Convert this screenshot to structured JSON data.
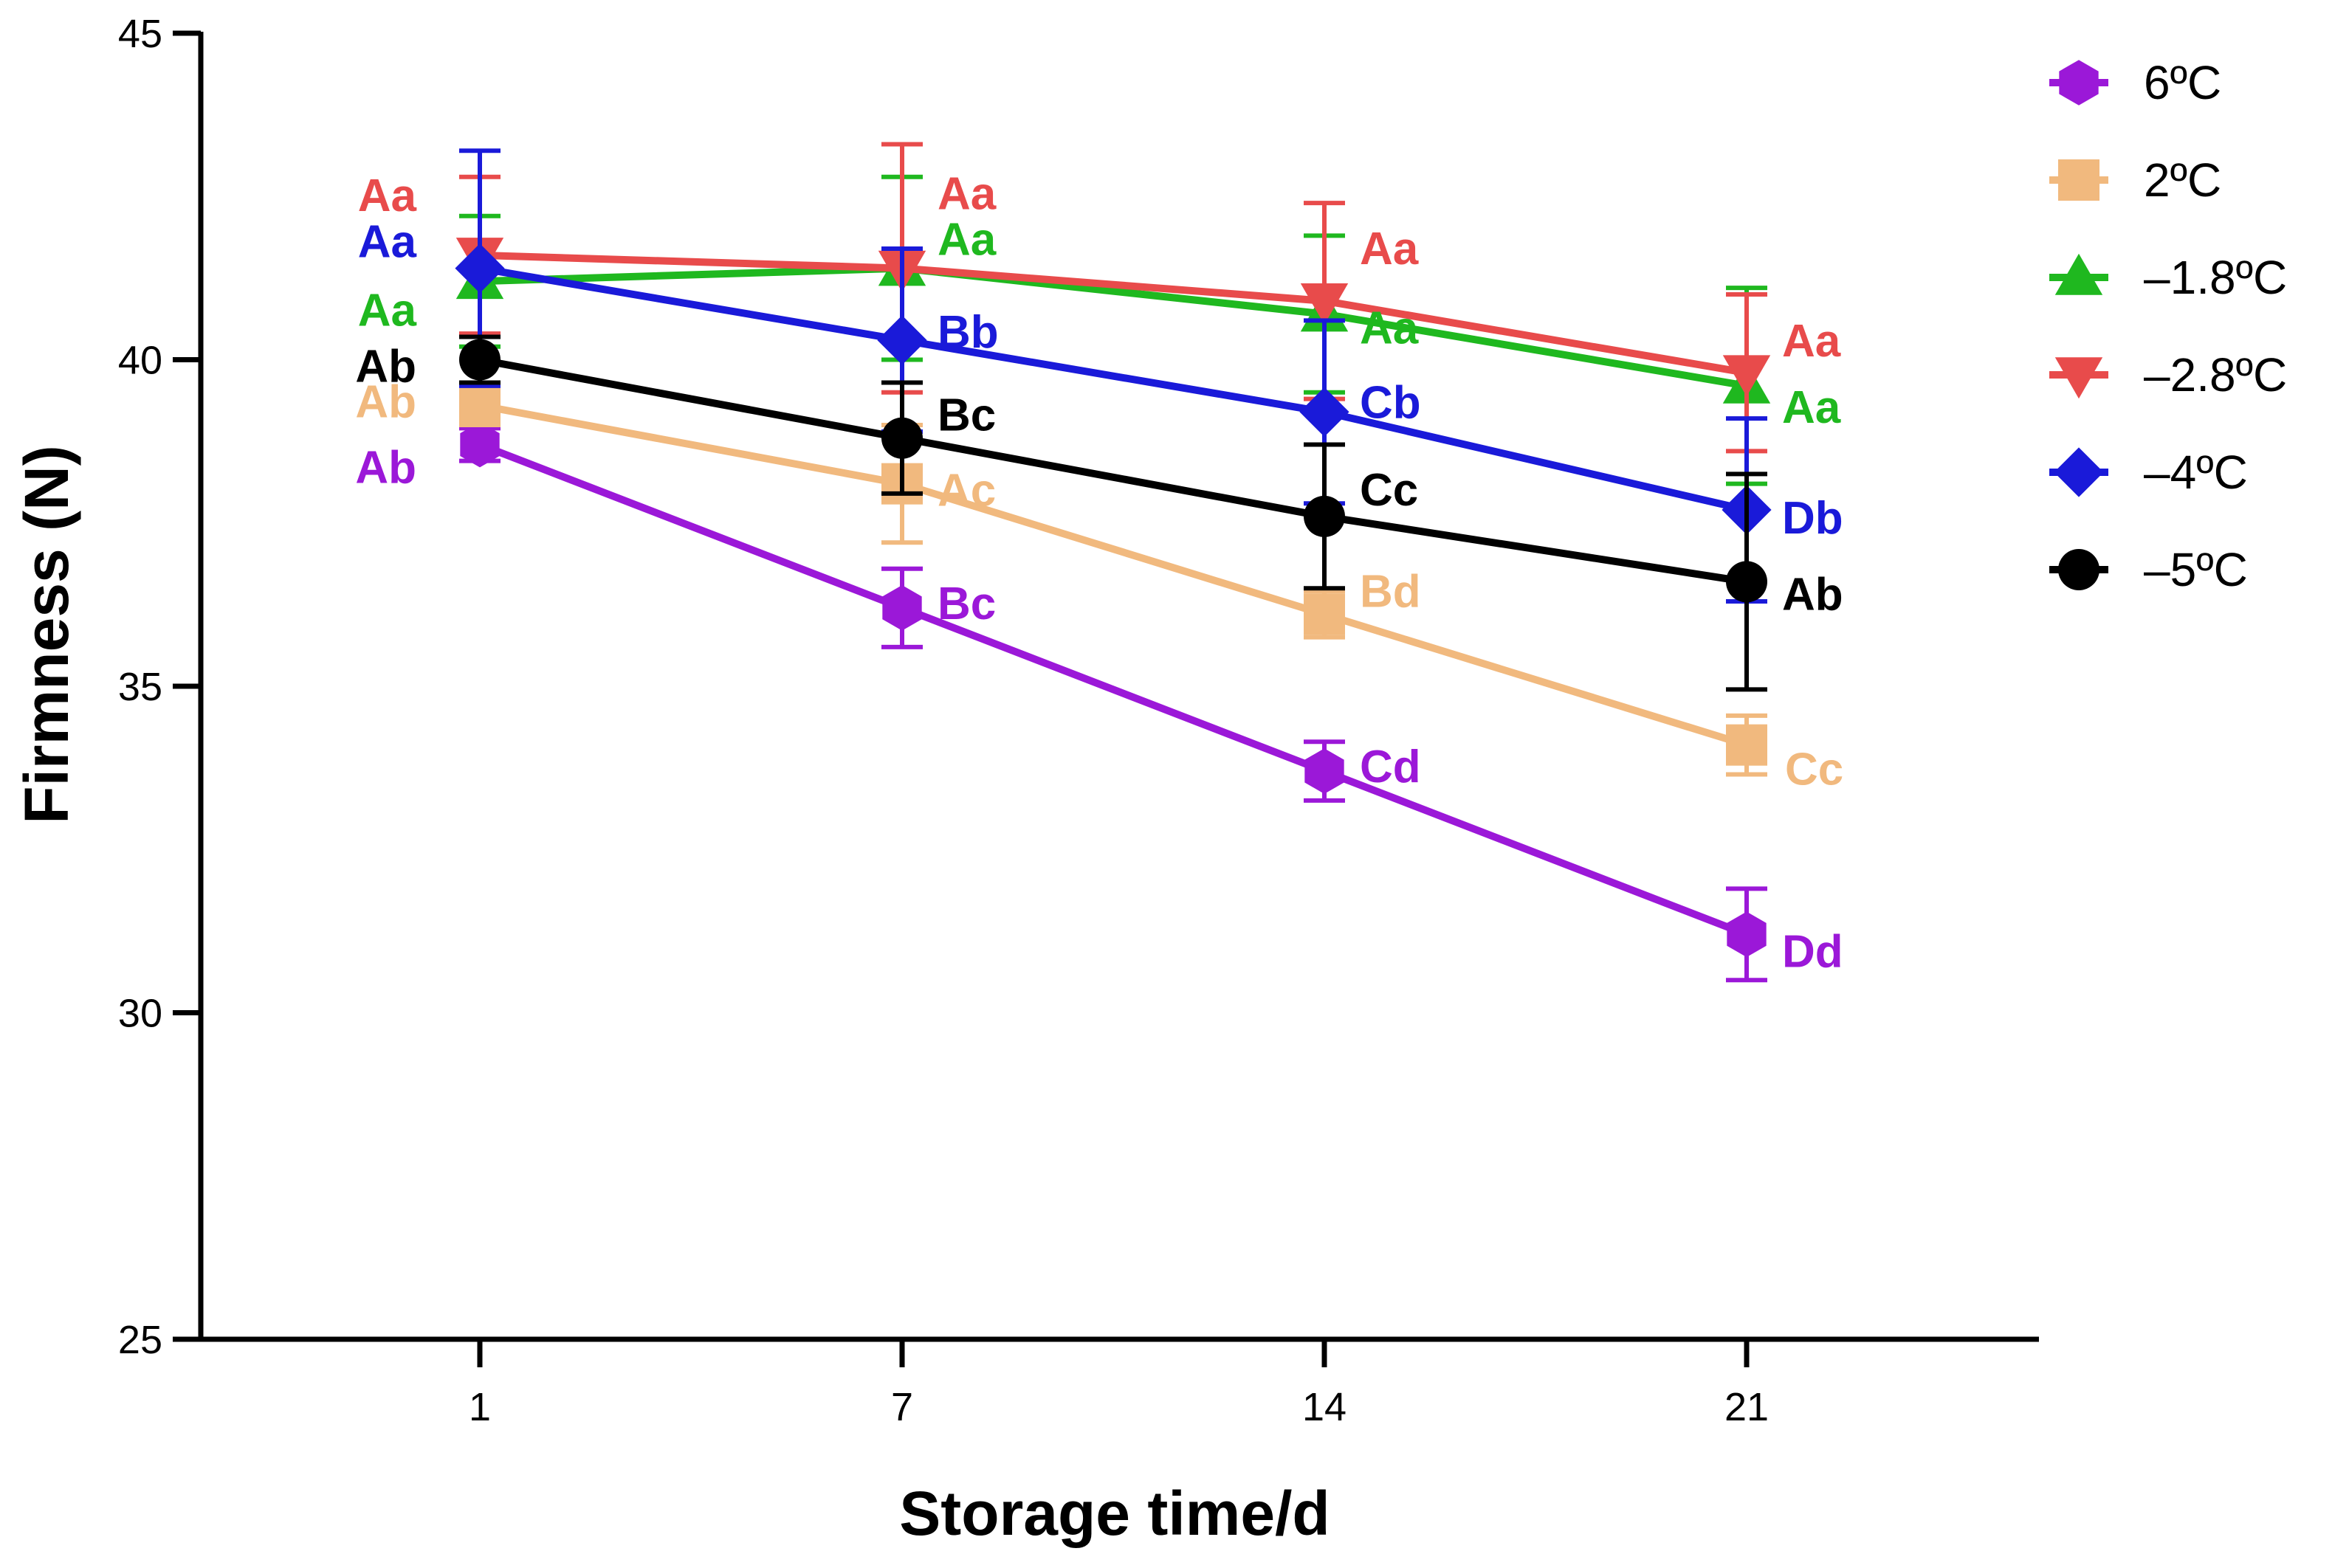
{
  "chart_data": {
    "type": "line",
    "title": "",
    "xlabel": "Storage time/d",
    "ylabel": "Firmness (N)",
    "x": [
      1,
      7,
      14,
      21
    ],
    "x_tick_labels": [
      "1",
      "7",
      "14",
      "21"
    ],
    "ylim": [
      25,
      45
    ],
    "y_ticks": [
      25,
      30,
      35,
      40,
      45
    ],
    "y_tick_labels": [
      "25",
      "30",
      "35",
      "40",
      "45"
    ],
    "grid": false,
    "legend_position": "top-right",
    "series": [
      {
        "name": "6ºC",
        "color": "#9B18D8",
        "marker": "hexagon",
        "values": [
          38.7,
          36.2,
          33.7,
          31.2
        ],
        "errors": [
          0.25,
          0.6,
          0.45,
          0.7
        ],
        "labels": [
          "Ab",
          "Bc",
          "Cd",
          "Dd"
        ]
      },
      {
        "name": "2ºC",
        "color": "#F1B97E",
        "marker": "square",
        "values": [
          39.3,
          38.1,
          36.1,
          34.1
        ],
        "errors": [
          0.3,
          0.9,
          0.35,
          0.45
        ],
        "labels": [
          "Ab",
          "Ac",
          "Bd",
          "Cc"
        ]
      },
      {
        "name": "–1.8ºC",
        "color": "#1FB81F",
        "marker": "triangle-up",
        "values": [
          41.2,
          41.4,
          40.7,
          39.6
        ],
        "errors": [
          1.0,
          1.4,
          1.2,
          1.5
        ],
        "labels": [
          "Aa",
          "Aa",
          "Aa",
          "Aa"
        ]
      },
      {
        "name": "–2.8ºC",
        "color": "#E84B4B",
        "marker": "triangle-down",
        "values": [
          41.6,
          41.4,
          40.9,
          39.8
        ],
        "errors": [
          1.2,
          1.9,
          1.5,
          1.2
        ],
        "labels": [
          "Aa",
          "Aa",
          "Aa",
          "Aa"
        ]
      },
      {
        "name": "–4ºC",
        "color": "#1A1AD9",
        "marker": "diamond",
        "values": [
          41.4,
          40.3,
          39.2,
          37.7
        ],
        "errors": [
          1.8,
          1.4,
          1.4,
          1.4
        ],
        "labels": [
          "Aa",
          "Bb",
          "Cb",
          "Db"
        ]
      },
      {
        "name": "–5ºC",
        "color": "#000000",
        "marker": "circle",
        "values": [
          40.0,
          38.8,
          37.6,
          36.6
        ],
        "errors": [
          0.35,
          0.85,
          1.1,
          1.65
        ],
        "labels": [
          "Ab",
          "Bc",
          "Cc",
          "Ab"
        ]
      }
    ]
  }
}
